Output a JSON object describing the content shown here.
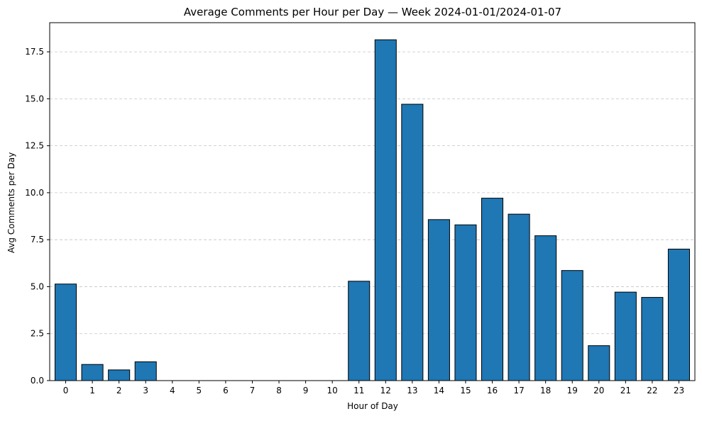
{
  "chart_data": {
    "type": "bar",
    "title": "Average Comments per Hour per Day — Week 2024-01-01/2024-01-07",
    "xlabel": "Hour of Day",
    "ylabel": "Avg Comments per Day",
    "categories": [
      "0",
      "1",
      "2",
      "3",
      "4",
      "5",
      "6",
      "7",
      "8",
      "9",
      "10",
      "11",
      "12",
      "13",
      "14",
      "15",
      "16",
      "17",
      "18",
      "19",
      "20",
      "21",
      "22",
      "23"
    ],
    "values": [
      5.14,
      0.86,
      0.57,
      1.0,
      0,
      0,
      0,
      0,
      0,
      0,
      0,
      5.29,
      18.14,
      14.71,
      8.57,
      8.29,
      9.71,
      8.86,
      7.71,
      5.86,
      1.86,
      4.71,
      4.43,
      7.0
    ],
    "ylim": [
      0,
      19.05
    ],
    "yticks": [
      0,
      2.5,
      5,
      7.5,
      10,
      12.5,
      15,
      17.5
    ],
    "ytick_labels": [
      "0.0",
      "2.5",
      "5.0",
      "7.5",
      "10.0",
      "12.5",
      "15.0",
      "17.5"
    ],
    "grid": "y-dashed",
    "bar_color": "#1f77b4",
    "edge_color": "#000000",
    "grid_color": "#c4c4c4"
  }
}
